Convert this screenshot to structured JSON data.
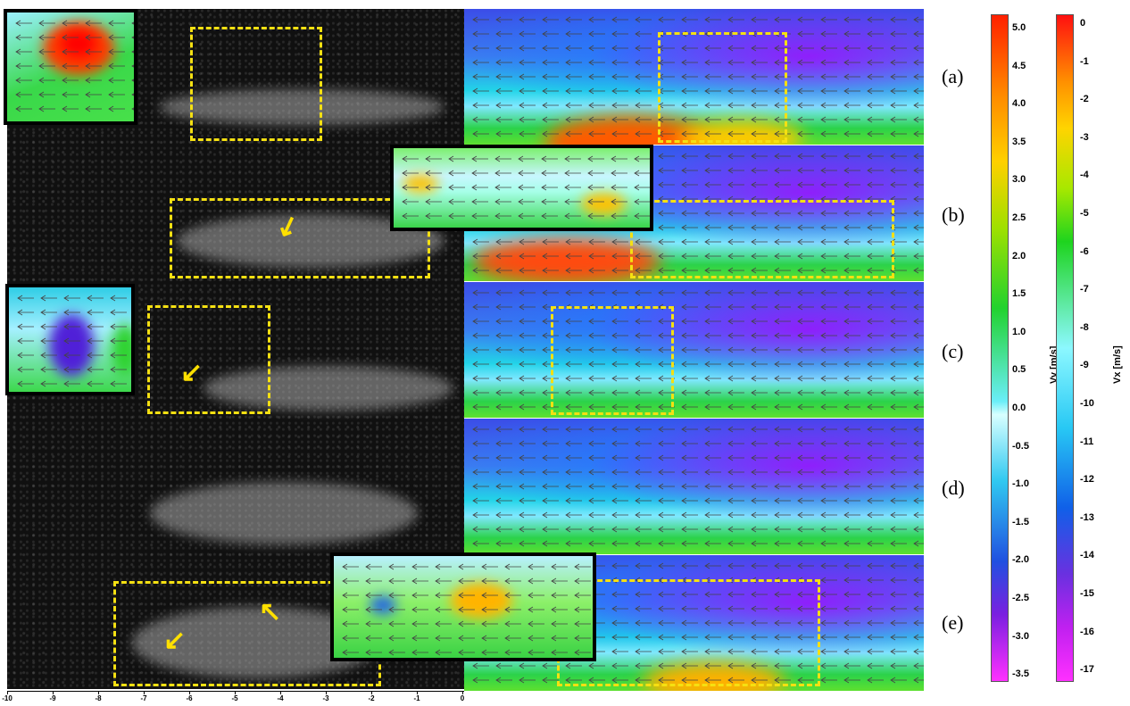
{
  "panels": [
    {
      "label": "(a)"
    },
    {
      "label": "(b)"
    },
    {
      "label": "(c)"
    },
    {
      "label": "(d)"
    },
    {
      "label": "(e)"
    }
  ],
  "colorbar_vy": {
    "title": "Vy [m/s]",
    "ticks": [
      "5.0",
      "4.5",
      "4.0",
      "3.5",
      "3.0",
      "2.5",
      "2.0",
      "1.5",
      "1.0",
      "0.5",
      "0.0",
      "-0.5",
      "-1.0",
      "-1.5",
      "-2.0",
      "-2.5",
      "-3.0",
      "-3.5"
    ]
  },
  "colorbar_vx": {
    "title": "Vx [m/s]",
    "ticks": [
      "0",
      "-1",
      "-2",
      "-3",
      "-4",
      "-5",
      "-6",
      "-7",
      "-8",
      "-9",
      "-10",
      "-11",
      "-12",
      "-13",
      "-14",
      "-15",
      "-16",
      "-17"
    ]
  },
  "x_axis": {
    "ticks": [
      "-10",
      "-9",
      "-8",
      "-7",
      "-6",
      "-5",
      "-4",
      "-3",
      "-2",
      "-1",
      "0"
    ]
  },
  "colors": {
    "highlight": "#f5e012",
    "frame": "#000000"
  }
}
